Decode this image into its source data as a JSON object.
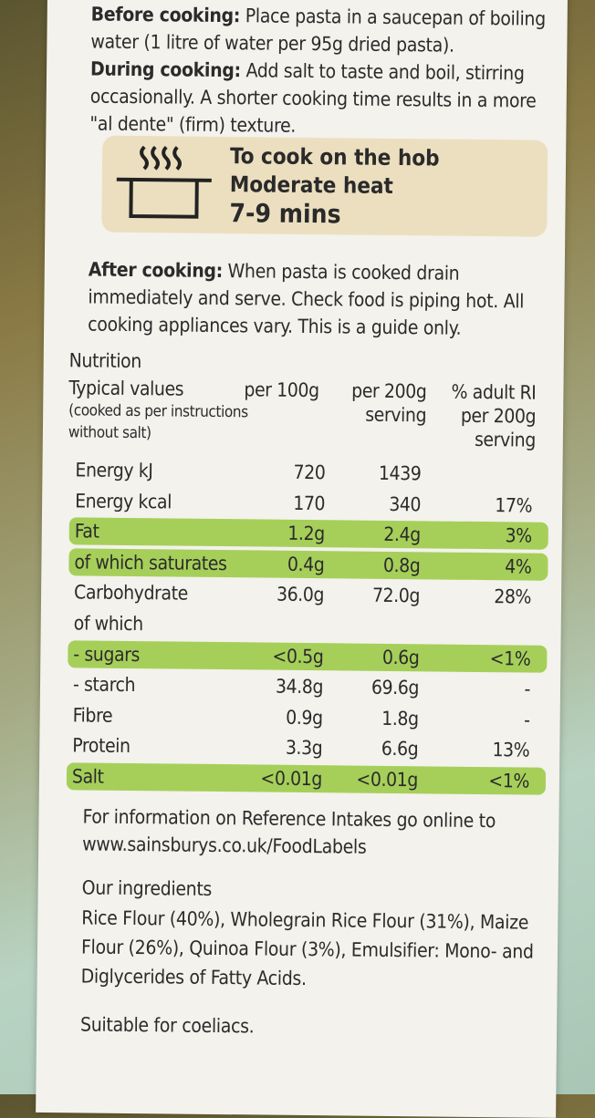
{
  "instructions": [
    {
      "label": "Before cooking:",
      "text": "Place pasta in a saucepan of boiling water (1 litre of water per 95g dried pasta)."
    },
    {
      "label": "During cooking:",
      "text": "Add salt to taste and boil, stirring occasionally. A shorter cooking time results in a more \"al dente\" (firm) texture."
    }
  ],
  "hob": {
    "title": "To cook on the hob",
    "heat": "Moderate heat",
    "time": "7-9 mins"
  },
  "after": {
    "label": "After cooking:",
    "text": "When pasta is cooked drain immediately and serve. Check food is piping hot. All cooking appliances vary. This is a guide only."
  },
  "nutrition": {
    "title": "Nutrition",
    "header": {
      "typical": "Typical values",
      "note": "(cooked as per instructions without salt)",
      "per100": "per 100g",
      "per200": "per 200g serving",
      "ri": "% adult RI per 200g serving"
    },
    "rows": [
      {
        "name": "Energy kJ",
        "per100": "720",
        "per200": "1439",
        "ri": null,
        "highlight": false
      },
      {
        "name": "Energy kcal",
        "per100": "170",
        "per200": "340",
        "ri": "17%",
        "highlight": false
      },
      {
        "name": "Fat",
        "per100": "1.2g",
        "per200": "2.4g",
        "ri": "3%",
        "highlight": true
      },
      {
        "name": "of which saturates",
        "per100": "0.4g",
        "per200": "0.8g",
        "ri": "4%",
        "highlight": true
      },
      {
        "name": "Carbohydrate",
        "per100": "36.0g",
        "per200": "72.0g",
        "ri": "28%",
        "highlight": false
      },
      {
        "name": "of which",
        "per100": null,
        "per200": null,
        "ri": null,
        "highlight": false
      },
      {
        "name": "- sugars",
        "per100": "<0.5g",
        "per200": "0.6g",
        "ri": "<1%",
        "highlight": true
      },
      {
        "name": "- starch",
        "per100": "34.8g",
        "per200": "69.6g",
        "ri": "-",
        "highlight": false
      },
      {
        "name": "Fibre",
        "per100": "0.9g",
        "per200": "1.8g",
        "ri": "-",
        "highlight": false
      },
      {
        "name": "Protein",
        "per100": "3.3g",
        "per200": "6.6g",
        "ri": "13%",
        "highlight": false
      },
      {
        "name": "Salt",
        "per100": "<0.01g",
        "per200": "<0.01g",
        "ri": "<1%",
        "highlight": true
      }
    ]
  },
  "reference": "For information on Reference Intakes go online to www.sainsburys.co.uk/FoodLabels",
  "ingredients": {
    "title": "Our ingredients",
    "text": "Rice Flour (40%), Wholegrain Rice Flour (31%), Maize Flour (26%), Quinoa Flour (3%), Emulsifier: Mono- and Diglycerides of Fatty Acids."
  },
  "suitable": "Suitable for coeliacs."
}
